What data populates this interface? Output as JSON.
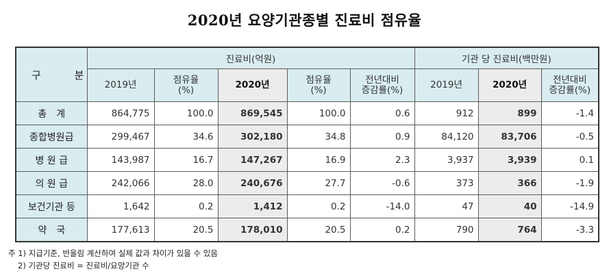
{
  "title": "2020년 요양기관종별 진료비 점유율",
  "table": {
    "corner_label": "구 분",
    "group_headers": [
      "진료비(억원)",
      "기관 당 진료비(백만원)"
    ],
    "sub_headers": [
      "2019년",
      "점유율\n(%)",
      "2020년",
      "점유율\n(%)",
      "전년대비\n증감률(%)",
      "2019년",
      "2020년",
      "전년대비\n증감률(%)"
    ],
    "rows": [
      {
        "label": "총　계",
        "values": [
          "864,775",
          "100.0",
          "869,545",
          "100.0",
          "0.6",
          "912",
          "899",
          "-1.4"
        ]
      },
      {
        "label": "종합병원급",
        "values": [
          "299,467",
          "34.6",
          "302,180",
          "34.8",
          "0.9",
          "84,120",
          "83,706",
          "-0.5"
        ]
      },
      {
        "label": "병 원 급",
        "values": [
          "143,987",
          "16.7",
          "147,267",
          "16.9",
          "2.3",
          "3,937",
          "3,939",
          "0.1"
        ]
      },
      {
        "label": "의 원 급",
        "values": [
          "242,066",
          "28.0",
          "240,676",
          "27.7",
          "-0.6",
          "373",
          "366",
          "-1.9"
        ]
      },
      {
        "label": "보건기관 등",
        "values": [
          "1,642",
          "0.2",
          "1,412",
          "0.2",
          "-14.0",
          "47",
          "40",
          "-14.9"
        ]
      },
      {
        "label": "약　국",
        "values": [
          "177,613",
          "20.5",
          "178,010",
          "20.5",
          "0.2",
          "790",
          "764",
          "-3.3"
        ]
      }
    ]
  },
  "notes": [
    "주 1) 지급기준, 반올림 계산하여 실제 값과 차이가 있을 수 있음",
    "2) 기관당 진료비 = 진료비/요양기관 수"
  ]
}
